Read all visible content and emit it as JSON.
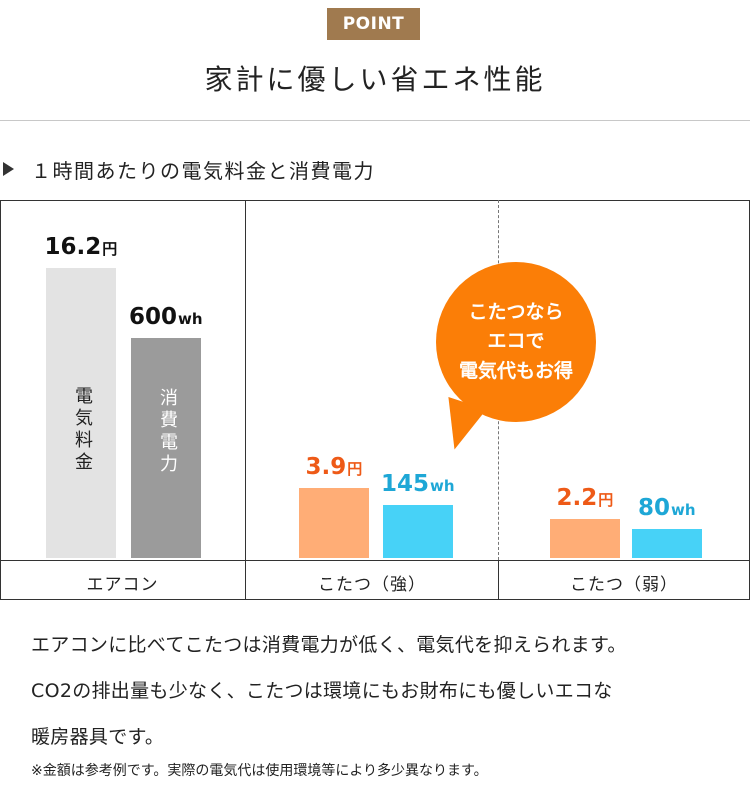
{
  "header": {
    "badge": "POINT",
    "title": "家計に優しい省エネ性能"
  },
  "section": {
    "subtitle": "１時間あたりの電気料金と消費電力"
  },
  "chart_data": {
    "type": "bar",
    "title": "１時間あたりの電気料金と消費電力",
    "categories": [
      "エアコン",
      "こたつ（強）",
      "こたつ（弱）"
    ],
    "series": [
      {
        "name": "電気料金",
        "unit": "円",
        "values": [
          16.2,
          3.9,
          2.2
        ],
        "labels": [
          "16.2",
          "3.9",
          "2.2"
        ]
      },
      {
        "name": "消費電力",
        "unit": "wh",
        "values": [
          600,
          145,
          80
        ],
        "labels": [
          "600",
          "145",
          "80"
        ]
      }
    ],
    "bar_text": [
      "電気料金",
      "消費電力"
    ],
    "colors": {
      "aircon_cost": "#e3e3e3",
      "aircon_power": "#9b9b9b",
      "kotatsu_cost": "#ffad76",
      "kotatsu_power": "#47d2f7",
      "cost_label_kotatsu": "#ee5a17",
      "power_label_kotatsu": "#1ea7d6"
    },
    "callout": {
      "line1": "こたつなら",
      "line2": "エコで",
      "line3": "電気代もお得",
      "color": "#fb7e07"
    },
    "grid": false,
    "legend": "none"
  },
  "description": {
    "line1": "エアコンに比べてこたつは消費電力が低く、電気代を抑えられます。",
    "line2": "CO2の排出量も少なく、こたつは環境にもお財布にも優しいエコな",
    "line3": "暖房器具です。",
    "note": "※金額は参考例です。実際の電気代は使用環境等により多少異なります。"
  }
}
